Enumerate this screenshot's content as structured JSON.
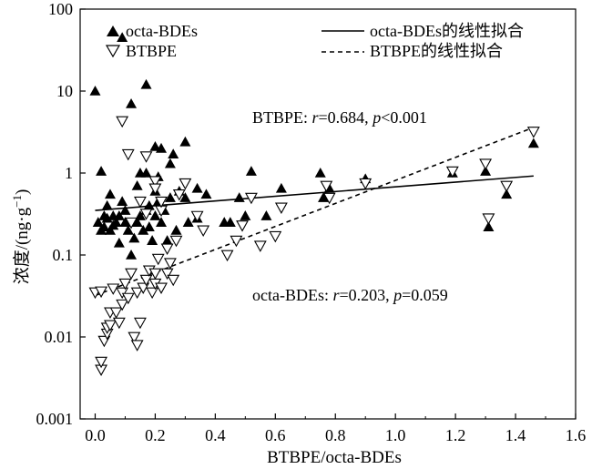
{
  "chart_data": {
    "type": "scatter",
    "xlabel": "BTBPE/octa-BDEs",
    "ylabel": "浓度/(ng·g",
    "ylabel_sup": "−1",
    "ylabel_close": ")",
    "xlim": [
      -0.05,
      1.6
    ],
    "ylim": [
      0.001,
      100
    ],
    "y_scale": "log",
    "x_ticks": [
      0.0,
      0.2,
      0.4,
      0.6,
      0.8,
      1.0,
      1.2,
      1.4,
      1.6
    ],
    "x_tick_labels": [
      "0.0",
      "0.2",
      "0.4",
      "0.6",
      "0.8",
      "1.0",
      "1.2",
      "1.4",
      "1.6"
    ],
    "y_ticks": [
      0.001,
      0.01,
      0.1,
      1,
      10,
      100
    ],
    "y_tick_labels": [
      "0.001",
      "0.01",
      "0.1",
      "1",
      "10",
      "100"
    ],
    "legend": {
      "placement": "top",
      "entries": [
        {
          "label": "octa-BDEs",
          "kind": "filled-triangle"
        },
        {
          "label": "octa-BDEs的线性拟合",
          "kind": "solid-line"
        },
        {
          "label": "BTBPE",
          "kind": "open-down-triangle"
        },
        {
          "label": "BTBPE的线性拟合",
          "kind": "dashed-line"
        }
      ]
    },
    "annotations": [
      {
        "prefix": "BTBPE: ",
        "r_label": "r",
        "r_value": "=0.684, ",
        "p_label": "p",
        "p_value": "<0.001"
      },
      {
        "prefix": "octa-BDEs: ",
        "r_label": "r",
        "r_value": "=0.203, ",
        "p_label": "p",
        "p_value": "=0.059"
      }
    ],
    "series": [
      {
        "name": "octa-BDEs",
        "marker": "filled-triangle",
        "points": [
          [
            0.0,
            10.0
          ],
          [
            0.09,
            45
          ],
          [
            0.12,
            7.0
          ],
          [
            0.17,
            12.0
          ],
          [
            0.02,
            1.05
          ],
          [
            0.01,
            0.25
          ],
          [
            0.02,
            0.2
          ],
          [
            0.03,
            0.3
          ],
          [
            0.03,
            0.22
          ],
          [
            0.04,
            0.4
          ],
          [
            0.04,
            0.28
          ],
          [
            0.05,
            0.2
          ],
          [
            0.05,
            0.55
          ],
          [
            0.06,
            0.3
          ],
          [
            0.06,
            0.23
          ],
          [
            0.07,
            0.25
          ],
          [
            0.08,
            0.3
          ],
          [
            0.08,
            0.14
          ],
          [
            0.09,
            0.45
          ],
          [
            0.1,
            0.35
          ],
          [
            0.1,
            0.25
          ],
          [
            0.11,
            0.2
          ],
          [
            0.12,
            0.1
          ],
          [
            0.13,
            0.16
          ],
          [
            0.14,
            0.7
          ],
          [
            0.14,
            0.25
          ],
          [
            0.15,
            1.0
          ],
          [
            0.15,
            0.3
          ],
          [
            0.16,
            0.2
          ],
          [
            0.17,
            1.0
          ],
          [
            0.17,
            0.35
          ],
          [
            0.18,
            0.4
          ],
          [
            0.18,
            0.22
          ],
          [
            0.19,
            0.15
          ],
          [
            0.2,
            2.1
          ],
          [
            0.2,
            0.6
          ],
          [
            0.2,
            0.3
          ],
          [
            0.21,
            0.9
          ],
          [
            0.21,
            0.45
          ],
          [
            0.22,
            2.0
          ],
          [
            0.22,
            0.25
          ],
          [
            0.23,
            0.35
          ],
          [
            0.24,
            0.15
          ],
          [
            0.25,
            1.3
          ],
          [
            0.25,
            0.5
          ],
          [
            0.26,
            1.7
          ],
          [
            0.27,
            0.2
          ],
          [
            0.28,
            0.6
          ],
          [
            0.3,
            2.4
          ],
          [
            0.3,
            0.5
          ],
          [
            0.31,
            0.25
          ],
          [
            0.34,
            0.65
          ],
          [
            0.34,
            0.28
          ],
          [
            0.37,
            0.55
          ],
          [
            0.43,
            0.25
          ],
          [
            0.45,
            0.25
          ],
          [
            0.48,
            0.5
          ],
          [
            0.5,
            0.3
          ],
          [
            0.52,
            1.05
          ],
          [
            0.57,
            0.3
          ],
          [
            0.62,
            0.65
          ],
          [
            0.75,
            1.0
          ],
          [
            0.76,
            0.5
          ],
          [
            0.78,
            0.65
          ],
          [
            0.9,
            0.85
          ],
          [
            1.19,
            1.0
          ],
          [
            1.3,
            1.05
          ],
          [
            1.31,
            0.22
          ],
          [
            1.37,
            0.55
          ],
          [
            1.46,
            2.3
          ]
        ],
        "fit": {
          "x": [
            0.0,
            1.46
          ],
          "y": [
            0.35,
            0.92
          ]
        }
      },
      {
        "name": "BTBPE",
        "marker": "open-down-triangle",
        "points": [
          [
            0.09,
            4.3
          ],
          [
            0.11,
            1.7
          ],
          [
            0.12,
            0.25
          ],
          [
            0.15,
            0.45
          ],
          [
            0.17,
            0.32
          ],
          [
            0.17,
            1.6
          ],
          [
            0.2,
            0.8
          ],
          [
            0.2,
            0.65
          ],
          [
            0.22,
            0.35
          ],
          [
            0.22,
            0.45
          ],
          [
            0.24,
            0.12
          ],
          [
            0.27,
            0.15
          ],
          [
            0.28,
            0.55
          ],
          [
            0.3,
            0.75
          ],
          [
            0.34,
            0.3
          ],
          [
            0.36,
            0.2
          ],
          [
            0.44,
            0.1
          ],
          [
            0.47,
            0.15
          ],
          [
            0.49,
            0.23
          ],
          [
            0.52,
            0.5
          ],
          [
            0.55,
            0.13
          ],
          [
            0.6,
            0.17
          ],
          [
            0.62,
            0.38
          ],
          [
            0.77,
            0.7
          ],
          [
            0.78,
            0.5
          ],
          [
            0.9,
            0.75
          ],
          [
            1.19,
            1.05
          ],
          [
            1.3,
            1.3
          ],
          [
            1.31,
            0.28
          ],
          [
            1.37,
            0.7
          ],
          [
            1.46,
            3.2
          ],
          [
            0.0,
            0.035
          ],
          [
            0.02,
            0.036
          ],
          [
            0.02,
            0.004
          ],
          [
            0.02,
            0.005
          ],
          [
            0.03,
            0.009
          ],
          [
            0.04,
            0.011
          ],
          [
            0.04,
            0.013
          ],
          [
            0.05,
            0.014
          ],
          [
            0.05,
            0.02
          ],
          [
            0.06,
            0.039
          ],
          [
            0.07,
            0.02
          ],
          [
            0.08,
            0.015
          ],
          [
            0.09,
            0.025
          ],
          [
            0.09,
            0.035
          ],
          [
            0.1,
            0.045
          ],
          [
            0.11,
            0.03
          ],
          [
            0.12,
            0.06
          ],
          [
            0.13,
            0.01
          ],
          [
            0.14,
            0.008
          ],
          [
            0.14,
            0.035
          ],
          [
            0.15,
            0.015
          ],
          [
            0.16,
            0.04
          ],
          [
            0.17,
            0.05
          ],
          [
            0.18,
            0.065
          ],
          [
            0.19,
            0.035
          ],
          [
            0.2,
            0.06
          ],
          [
            0.2,
            0.045
          ],
          [
            0.21,
            0.09
          ],
          [
            0.22,
            0.04
          ],
          [
            0.24,
            0.06
          ],
          [
            0.25,
            0.08
          ],
          [
            0.26,
            0.05
          ]
        ],
        "fit": {
          "x": [
            0.0,
            1.46
          ],
          "y": [
            0.032,
            3.6
          ]
        }
      }
    ]
  }
}
